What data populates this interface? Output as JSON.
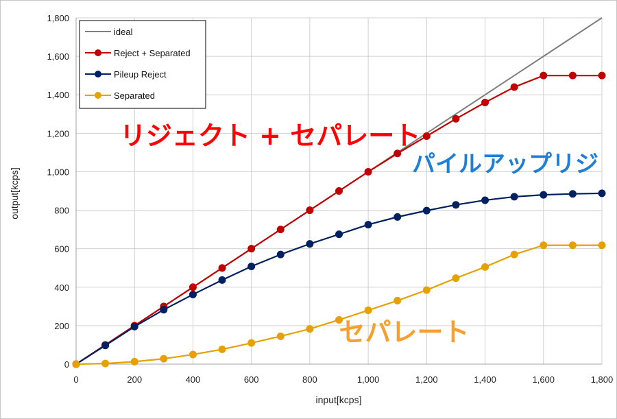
{
  "chart_data": {
    "type": "line",
    "title": "",
    "xlabel": "input[kcps]",
    "ylabel": "output[kcps]",
    "xlim": [
      0,
      1800
    ],
    "ylim": [
      0,
      1800
    ],
    "x_ticks": [
      0,
      200,
      400,
      600,
      800,
      1000,
      1200,
      1400,
      1600,
      1800
    ],
    "y_ticks": [
      0,
      200,
      400,
      600,
      800,
      1000,
      1200,
      1400,
      1600,
      1800
    ],
    "x_tick_labels": [
      "0",
      "200",
      "400",
      "600",
      "800",
      "1,000",
      "1,200",
      "1,400",
      "1,600",
      "1,800"
    ],
    "y_tick_labels": [
      "0",
      "200",
      "400",
      "600",
      "800",
      "1,000",
      "1,200",
      "1,400",
      "1,600",
      "1,800"
    ],
    "grid": true,
    "legend_position": "top-left",
    "x": [
      0,
      100,
      200,
      300,
      400,
      500,
      600,
      700,
      800,
      900,
      1000,
      1100,
      1200,
      1300,
      1400,
      1500,
      1600,
      1700,
      1800
    ],
    "series": [
      {
        "name": "ideal",
        "color": "#7f7f7f",
        "markers": false,
        "x": [
          0,
          1800
        ],
        "values": [
          0,
          1800
        ]
      },
      {
        "name": "Reject + Separated",
        "color": "#c00000",
        "markers": true,
        "values": [
          0,
          100,
          200,
          300,
          400,
          500,
          600,
          700,
          800,
          900,
          1000,
          1095,
          1185,
          1275,
          1360,
          1440,
          1500,
          1500,
          1500
        ]
      },
      {
        "name": "Pileup Reject",
        "color": "#002060",
        "markers": true,
        "values": [
          0,
          97,
          195,
          283,
          362,
          437,
          508,
          570,
          625,
          675,
          725,
          765,
          798,
          828,
          852,
          870,
          880,
          885,
          888
        ]
      },
      {
        "name": "Separated",
        "color": "#e6a000",
        "markers": true,
        "values": [
          0,
          3,
          13,
          28,
          50,
          77,
          110,
          145,
          183,
          230,
          280,
          330,
          385,
          447,
          505,
          570,
          618,
          618,
          618
        ]
      }
    ],
    "annotations": [
      {
        "text": "リジェクト + セパレート",
        "color": "#ff0000",
        "x": 150,
        "y": 1140
      },
      {
        "text": "パイルアップリジ",
        "color": "#1f7fd4",
        "x": 1150,
        "y": 1000
      },
      {
        "text": "セパレート",
        "color": "#f5a030",
        "x": 900,
        "y": 120
      }
    ]
  }
}
